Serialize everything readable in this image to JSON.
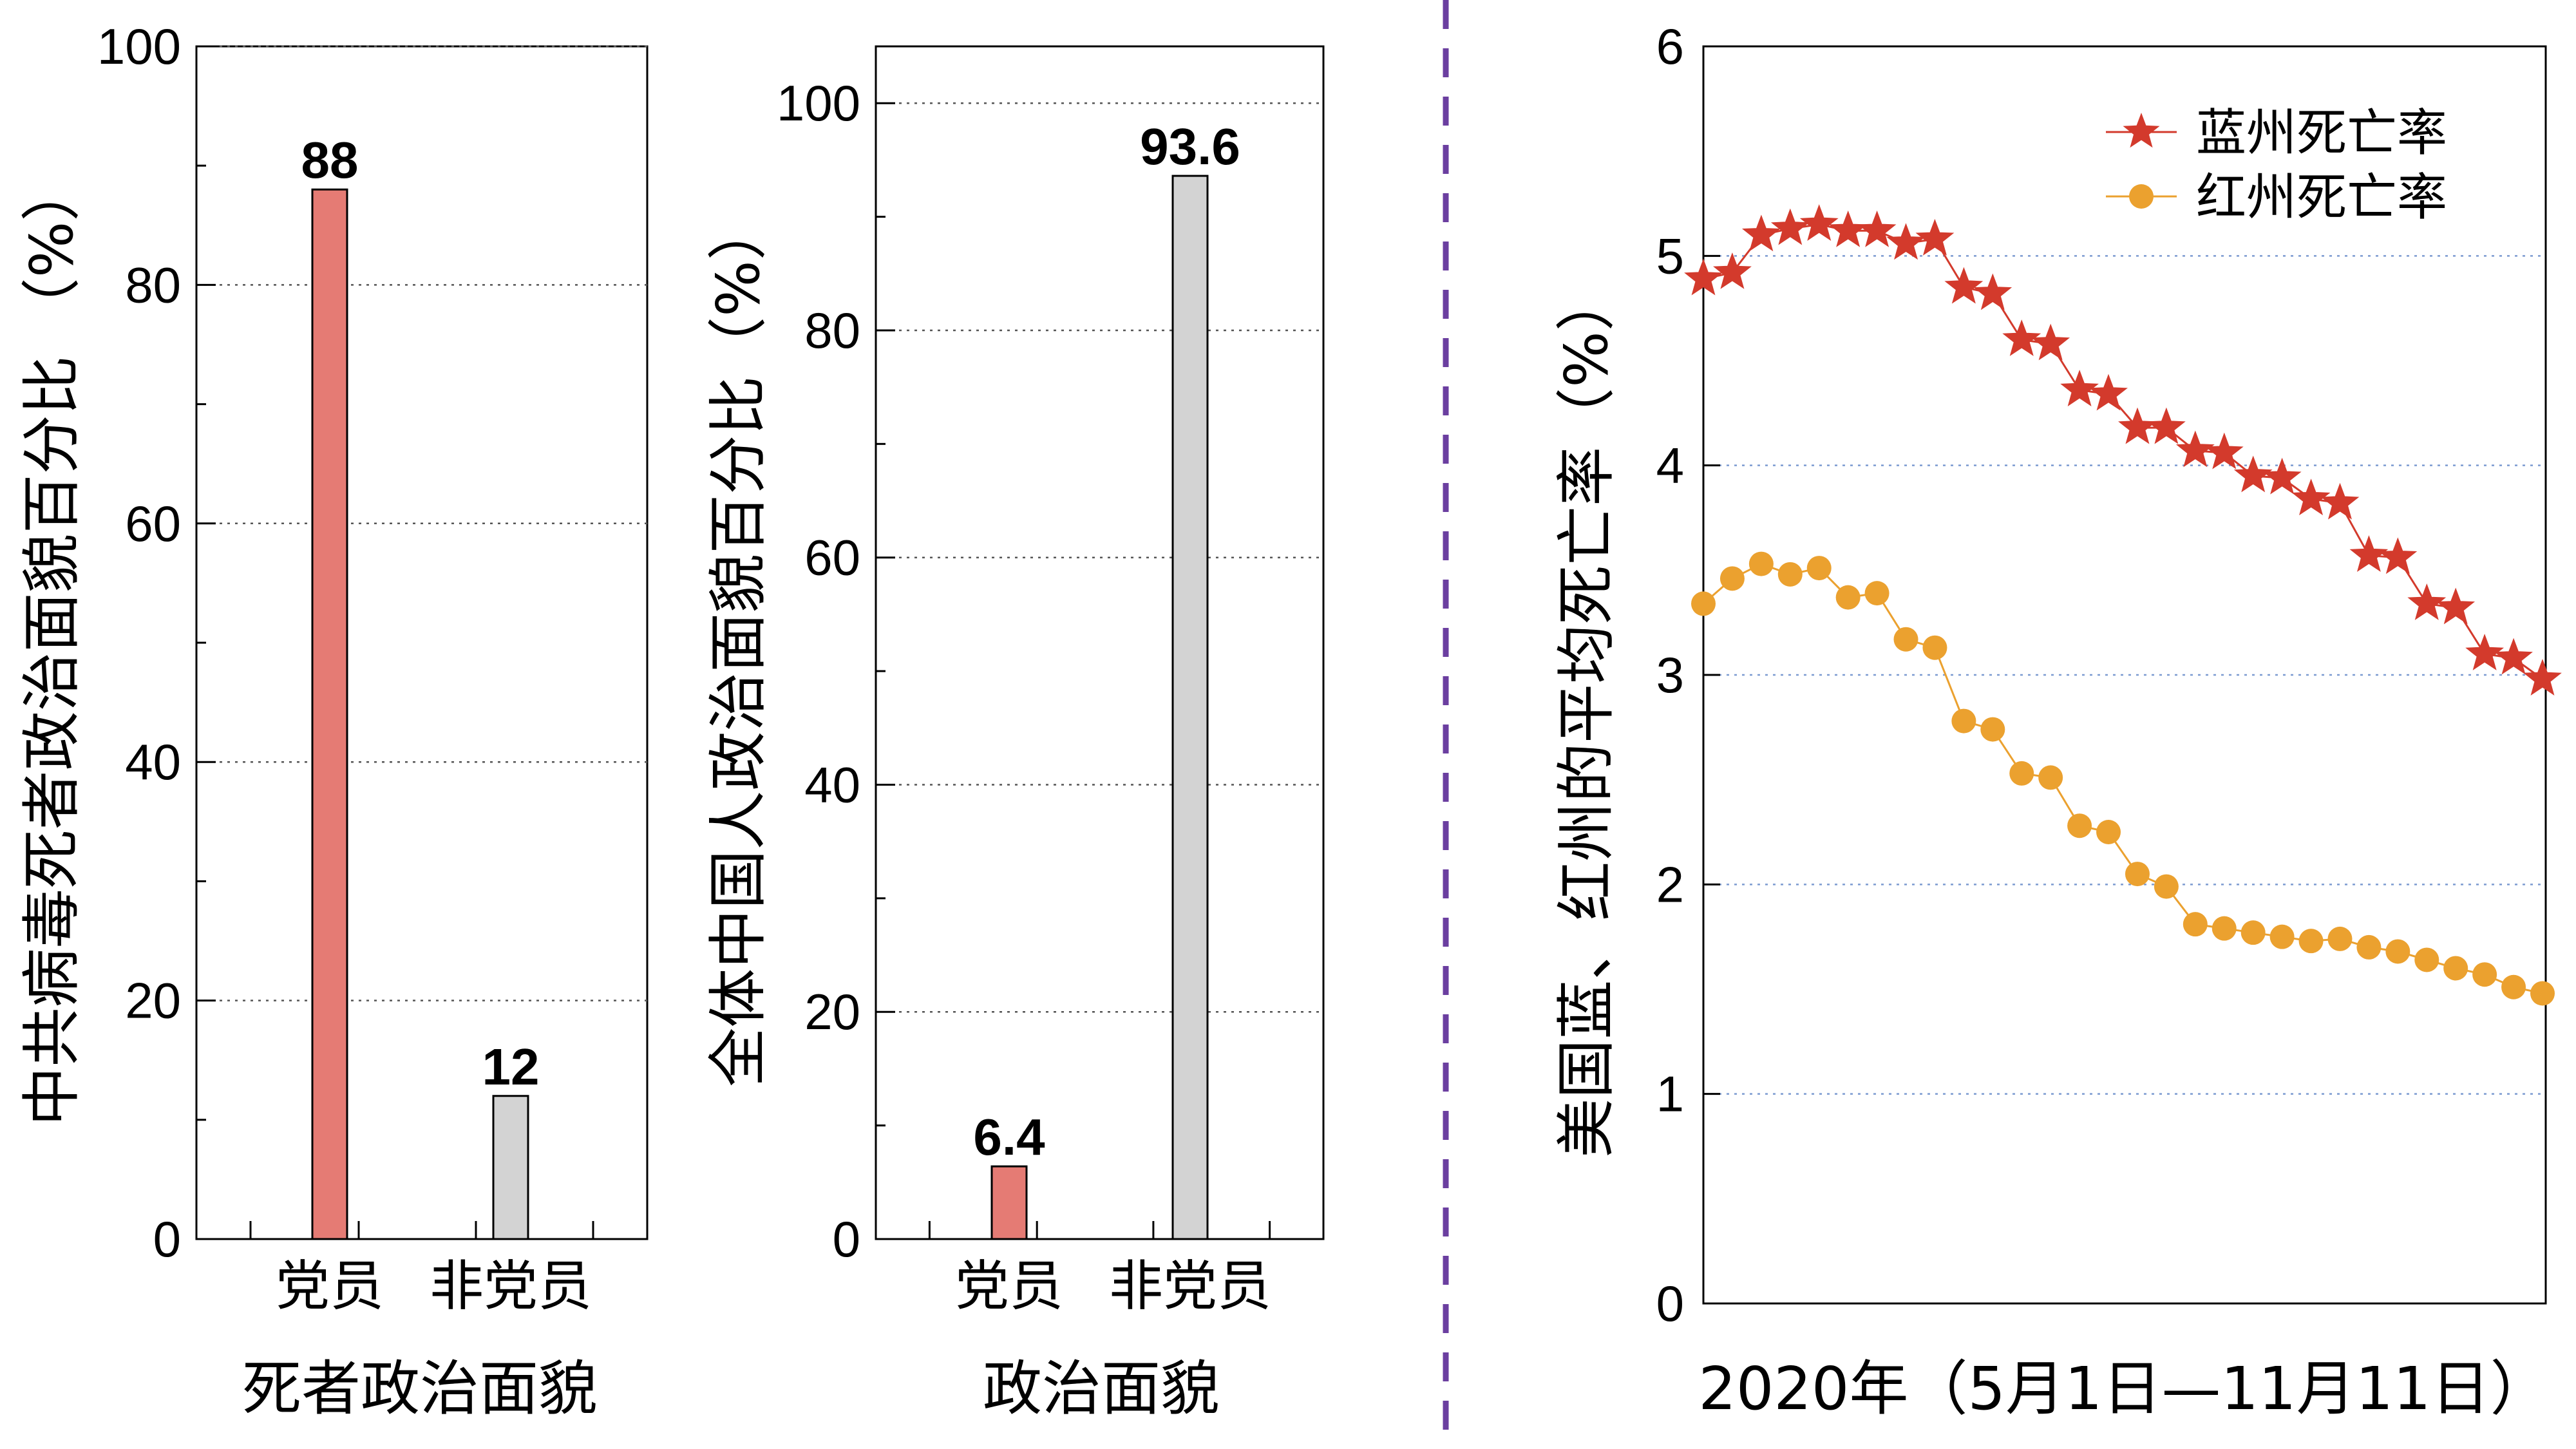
{
  "chart_data": [
    {
      "type": "bar",
      "categories": [
        "党员",
        "非党员"
      ],
      "values": [
        88,
        12
      ],
      "data_labels": [
        "88",
        "12"
      ],
      "colors": [
        "#e57b74",
        "#d3d3d3"
      ],
      "xlabel": "死者政治面貌",
      "ylabel": "中共病毒死者政治面貌百分比 （%）",
      "ylim": [
        0,
        100
      ],
      "yticks": [
        0,
        20,
        40,
        60,
        80,
        100
      ],
      "grid": true
    },
    {
      "type": "bar",
      "categories": [
        "党员",
        "非党员"
      ],
      "values": [
        6.4,
        93.6
      ],
      "data_labels": [
        "6.4",
        "93.6"
      ],
      "colors": [
        "#e57b74",
        "#d3d3d3"
      ],
      "xlabel": "政治面貌",
      "ylabel": "全体中国人政治面貌百分比（%）",
      "ylim": [
        0,
        105
      ],
      "yticks": [
        0,
        20,
        40,
        60,
        80,
        100
      ],
      "grid": true
    },
    {
      "type": "line",
      "xlabel": "2020年（5月1日—11月11日）",
      "ylabel": "美国蓝、红州的平均死亡率（%）",
      "ylim": [
        0,
        6
      ],
      "yticks": [
        0,
        1,
        2,
        3,
        4,
        5,
        6
      ],
      "grid": true,
      "legend_position": "top-right",
      "series": [
        {
          "name": "蓝州死亡率",
          "color": "#d33a2c",
          "marker": "star",
          "values": [
            4.89,
            4.92,
            5.1,
            5.13,
            5.15,
            5.12,
            5.12,
            5.06,
            5.08,
            4.85,
            4.82,
            4.6,
            4.58,
            4.36,
            4.34,
            4.18,
            4.18,
            4.07,
            4.06,
            3.95,
            3.94,
            3.84,
            3.82,
            3.57,
            3.56,
            3.34,
            3.32,
            3.1,
            3.08,
            2.98
          ]
        },
        {
          "name": "红州死亡率",
          "color": "#eba12f",
          "marker": "circle",
          "values": [
            3.34,
            3.46,
            3.53,
            3.48,
            3.51,
            3.37,
            3.39,
            3.17,
            3.13,
            2.78,
            2.74,
            2.53,
            2.51,
            2.28,
            2.25,
            2.05,
            1.99,
            1.81,
            1.79,
            1.77,
            1.75,
            1.73,
            1.74,
            1.7,
            1.68,
            1.64,
            1.6,
            1.57,
            1.51,
            1.48
          ]
        }
      ]
    }
  ]
}
